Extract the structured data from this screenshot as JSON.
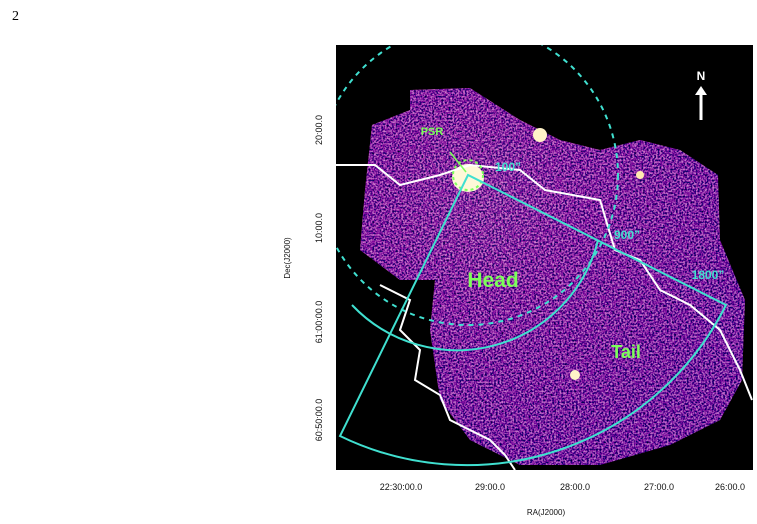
{
  "page_number": "2",
  "figure": {
    "x_axis_title": "RA(J2000)",
    "y_axis_title": "Dec(J2000)",
    "x_tick_labels": [
      "22:30:00.0",
      "29:00.0",
      "28:00.0",
      "27:00.0",
      "26:00.0"
    ],
    "y_tick_labels": [
      "20:00.0",
      "10:00.0",
      "61:00:00.0",
      "60:50:00.0"
    ],
    "annotations": {
      "north": "N",
      "pulsar": "PSR",
      "radius_small": "100”",
      "radius_medium": "900”",
      "radius_large": "1800”",
      "head": "Head",
      "tail": "Tail"
    }
  }
}
